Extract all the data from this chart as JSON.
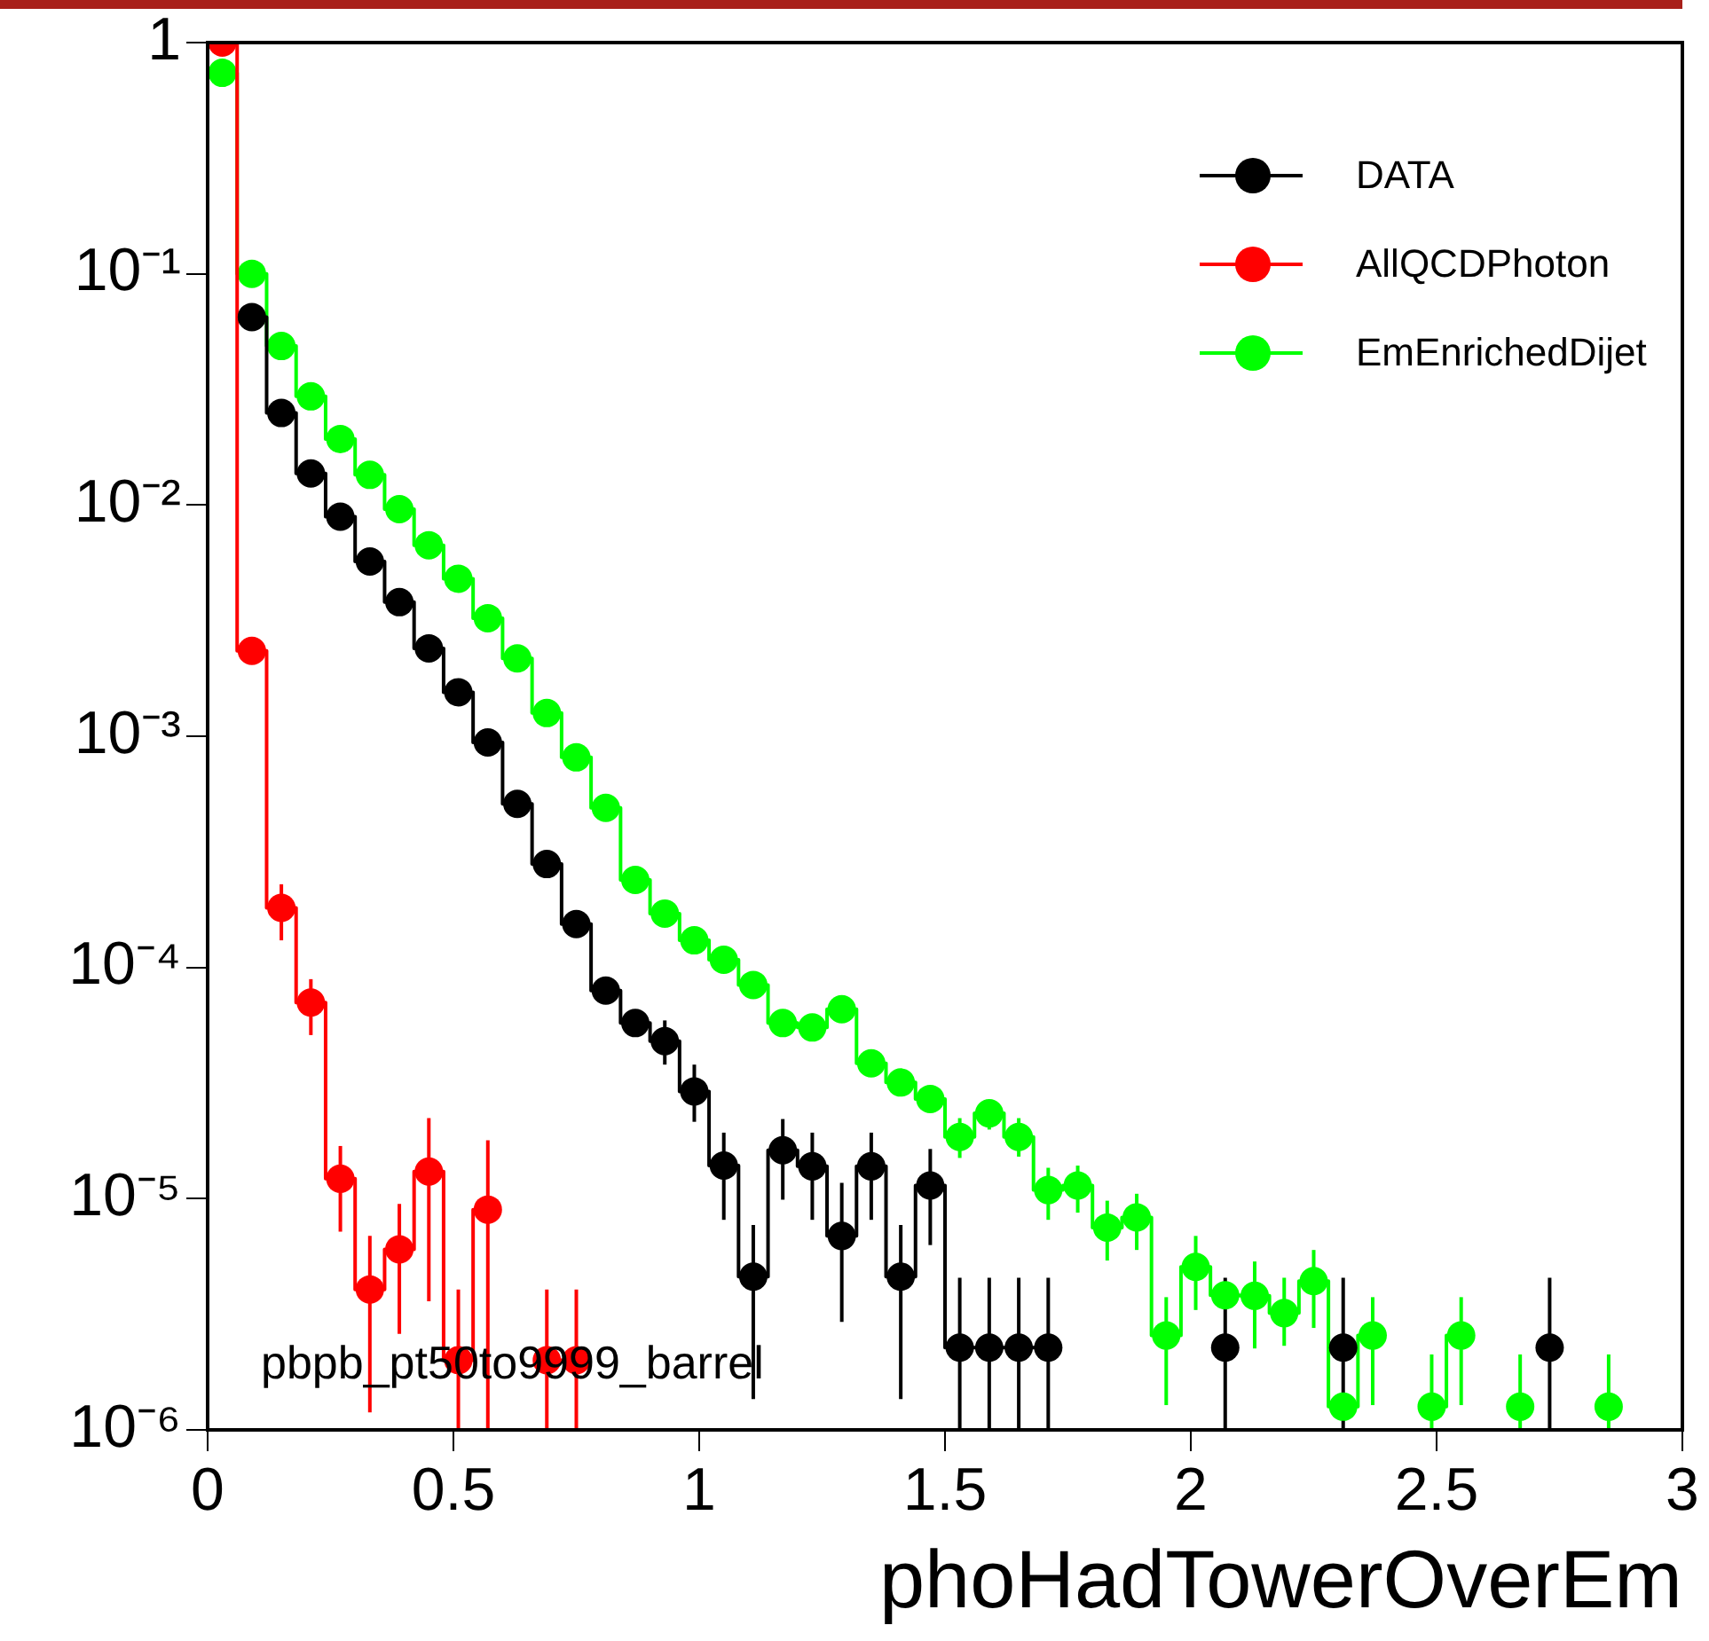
{
  "chart_data": {
    "type": "step",
    "xlabel": "phoHadTowerOverEm",
    "x": [
      0.03,
      0.09,
      0.15,
      0.21,
      0.27,
      0.33,
      0.39,
      0.45,
      0.51,
      0.57,
      0.63,
      0.69,
      0.75,
      0.81,
      0.87,
      0.93,
      0.99,
      1.05,
      1.11,
      1.17,
      1.23,
      1.29,
      1.35,
      1.41,
      1.47,
      1.53,
      1.59,
      1.65,
      1.71,
      1.77,
      1.83,
      1.89,
      1.95,
      2.01,
      2.07,
      2.13,
      2.19,
      2.25,
      2.31,
      2.37,
      2.43,
      2.49,
      2.55,
      2.61,
      2.67,
      2.73,
      2.79,
      2.85
    ],
    "series": [
      {
        "name": "DATA",
        "color": "#000000",
        "values": [
          null,
          0.065,
          0.025,
          0.0137,
          0.0089,
          0.0057,
          0.0038,
          0.0024,
          0.00155,
          0.00094,
          0.00051,
          0.00028,
          0.000154,
          7.94e-05,
          5.75e-05,
          4.8e-05,
          2.91e-05,
          1.39e-05,
          4.6e-06,
          1.62e-05,
          1.38e-05,
          6.9e-06,
          1.38e-05,
          4.6e-06,
          1.14e-05,
          2.27e-06,
          2.27e-06,
          2.27e-06,
          2.27e-06,
          null,
          null,
          null,
          null,
          null,
          2.27e-06,
          null,
          null,
          null,
          2.27e-06,
          null,
          null,
          null,
          null,
          null,
          null,
          2.27e-06,
          null,
          null
        ],
        "errors": [
          null,
          null,
          null,
          null,
          null,
          null,
          null,
          null,
          null,
          null,
          null,
          null,
          null,
          null,
          null,
          [
            3.8e-05,
            5.9e-05
          ],
          [
            2.15e-05,
            3.8e-05
          ],
          [
            8.1e-06,
            1.93e-05
          ],
          [
            1.36e-06,
            7.7e-06
          ],
          [
            9.9e-06,
            2.21e-05
          ],
          [
            8.1e-06,
            1.93e-05
          ],
          [
            2.93e-06,
            1.17e-05
          ],
          [
            8.1e-06,
            1.93e-05
          ],
          [
            1.36e-06,
            7.7e-06
          ],
          [
            6.3e-06,
            1.64e-05
          ],
          [
            1e-06,
            4.55e-06
          ],
          [
            1e-06,
            4.55e-06
          ],
          [
            1e-06,
            4.55e-06
          ],
          [
            1e-06,
            4.55e-06
          ],
          null,
          null,
          null,
          null,
          null,
          [
            1e-06,
            4.55e-06
          ],
          null,
          null,
          null,
          [
            1e-06,
            4.55e-06
          ],
          null,
          null,
          null,
          null,
          null,
          null,
          [
            1e-06,
            4.55e-06
          ],
          null,
          null
        ]
      },
      {
        "name": "AllQCDPhoton",
        "color": "#ff0000",
        "values": [
          1.0,
          0.00234,
          0.000181,
          7.05e-05,
          1.22e-05,
          4.05e-06,
          6.04e-06,
          1.31e-05,
          2e-06,
          8.97e-06,
          null,
          2e-06,
          2e-06,
          null,
          null,
          null,
          null,
          null,
          null,
          null,
          null,
          null,
          null,
          null,
          null,
          null,
          null,
          null,
          null,
          null,
          null,
          null,
          null,
          null,
          null,
          null,
          null,
          null,
          null,
          null,
          null,
          null,
          null,
          null,
          null,
          null,
          null,
          null
        ],
        "errors": [
          null,
          null,
          [
            0.000131,
            0.000229
          ],
          [
            5.1e-05,
            8.9e-05
          ],
          [
            7.2e-06,
            1.69e-05
          ],
          [
            1.19e-06,
            6.9e-06
          ],
          [
            2.6e-06,
            9.5e-06
          ],
          [
            3.6e-06,
            2.23e-05
          ],
          [
            1e-06,
            4.05e-06
          ],
          [
            1e-06,
            1.79e-05
          ],
          null,
          [
            1e-06,
            4.05e-06
          ],
          [
            1e-06,
            4.05e-06
          ],
          null,
          null,
          null,
          null,
          null,
          null,
          null,
          null,
          null,
          null,
          null,
          null,
          null,
          null,
          null,
          null,
          null,
          null,
          null,
          null,
          null,
          null,
          null,
          null,
          null,
          null,
          null,
          null,
          null,
          null,
          null,
          null,
          null,
          null,
          null
        ]
      },
      {
        "name": "EmEnrichedDijet",
        "color": "#00ff00",
        "values": [
          0.74,
          0.1,
          0.0487,
          0.0295,
          0.0193,
          0.0135,
          0.0096,
          0.0067,
          0.0048,
          0.00324,
          0.00217,
          0.00126,
          0.00081,
          0.00049,
          0.000239,
          0.000171,
          0.000131,
          0.000108,
          8.4e-05,
          5.75e-05,
          5.5e-05,
          6.6e-05,
          3.85e-05,
          3.18e-05,
          2.7e-05,
          1.85e-05,
          2.34e-05,
          1.85e-05,
          1.09e-05,
          1.14e-05,
          7.5e-06,
          8.3e-06,
          2.56e-06,
          5.07e-06,
          3.82e-06,
          3.8e-06,
          3.2e-06,
          4.4e-06,
          1.26e-06,
          2.56e-06,
          null,
          1.26e-06,
          2.56e-06,
          null,
          1.26e-06,
          null,
          null,
          1.26e-06
        ],
        "errors": [
          null,
          null,
          null,
          null,
          null,
          null,
          null,
          null,
          null,
          null,
          null,
          null,
          null,
          null,
          null,
          null,
          null,
          null,
          null,
          null,
          null,
          null,
          null,
          null,
          null,
          [
            1.5e-05,
            2.23e-05
          ],
          [
            1.99e-05,
            2.67e-05
          ],
          [
            1.52e-05,
            2.23e-05
          ],
          [
            8.1e-06,
            1.36e-05
          ],
          [
            8.7e-06,
            1.39e-05
          ],
          [
            5.4e-06,
            9.8e-06
          ],
          [
            6e-06,
            1.05e-05
          ],
          [
            1.28e-06,
            3.75e-06
          ],
          [
            3.3e-06,
            6.9e-06
          ],
          null,
          [
            2.25e-06,
            5.35e-06
          ],
          [
            2.31e-06,
            4.55e-06
          ],
          [
            2.76e-06,
            6e-06
          ],
          null,
          [
            1.28e-06,
            3.75e-06
          ],
          null,
          [
            1e-06,
            2.12e-06
          ],
          [
            1.28e-06,
            3.75e-06
          ],
          null,
          [
            1e-06,
            2.12e-06
          ],
          null,
          null,
          [
            1e-06,
            2.12e-06
          ]
        ]
      }
    ],
    "xlim": [
      0,
      3
    ],
    "xticks": [
      0,
      0.5,
      1,
      1.5,
      2,
      2.5,
      3
    ],
    "ylim": [
      1e-06,
      1
    ],
    "log": true,
    "yticks": [
      {
        "value": 1e-06,
        "label": "10⁻⁶"
      },
      {
        "value": 1e-05,
        "label": "10⁻⁵"
      },
      {
        "value": 0.0001,
        "label": "10⁻⁴"
      },
      {
        "value": 0.001,
        "label": "10⁻³"
      },
      {
        "value": 0.01,
        "label": "10⁻²"
      },
      {
        "value": 0.1,
        "label": "10⁻¹"
      },
      1
    ],
    "annotations": [
      "pbpb_pt50to9999_barrel"
    ],
    "legend": "top right",
    "grid": false,
    "marker": "circle",
    "line_style": "solid"
  }
}
